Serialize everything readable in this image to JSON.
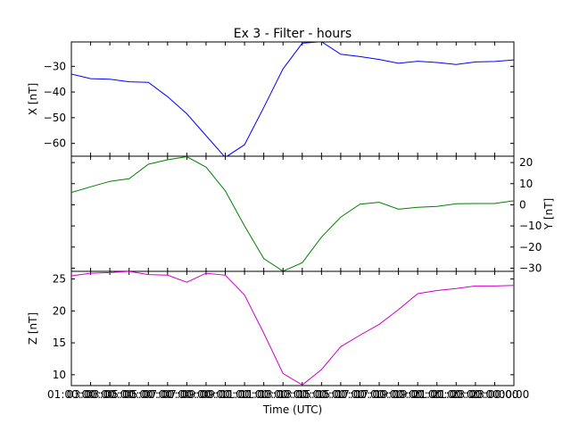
{
  "chart_data": {
    "type": "line",
    "title": "Ex 3 - Filter - hours",
    "xlabel": "Time (UTC)",
    "x": [
      "01:00:00",
      "02:00:00",
      "03:00:00",
      "04:00:00",
      "05:00:00",
      "06:00:00",
      "07:00:00",
      "08:00:00",
      "09:00:00",
      "10:00:00",
      "11:00:00",
      "12:00:00",
      "13:00:00",
      "14:00:00",
      "15:00:00",
      "16:00:00",
      "17:00:00",
      "18:00:00",
      "19:00:00",
      "20:00:00",
      "21:00:00",
      "22:00:00",
      "23:00:00",
      "00:00:00"
    ],
    "x_tick_labels": [
      "01:00:00",
      "03:00:00",
      "05:00:00",
      "07:00:00",
      "09:00:00",
      "11:00:00",
      "13:00:00",
      "15:00:00",
      "17:00:00",
      "19:00:00",
      "21:00:00",
      "23:00:00"
    ],
    "x_tick_labels_secondary": [
      "03:00:00",
      "05:00:00",
      "07:00:00",
      "09:00:00",
      "11:00:00",
      "13:00:00",
      "15:00:00",
      "17:00:00",
      "19:00:00",
      "21:00:00",
      "23:00:00"
    ],
    "x_tick_labels_end": "00:00",
    "panels": [
      {
        "ylabel": "X [nT]",
        "ylabel_side": "left",
        "color": "#0000ff",
        "ylim": [
          -65,
          -20.5
        ],
        "yticks": [
          -60,
          -50,
          -40,
          -30
        ],
        "values": [
          -33,
          -34.8,
          -35,
          -36,
          -36.2,
          -41.8,
          -48.5,
          -57,
          -65.5,
          -60.5,
          -46,
          -31,
          -21,
          -20.4,
          -25.3,
          -26.2,
          -27.3,
          -28.8,
          -28,
          -28.5,
          -29.3,
          -28.3,
          -28.1,
          -27.5
        ]
      },
      {
        "ylabel": "Y [nT]",
        "ylabel_side": "right",
        "color": "#008000",
        "ylim": [
          -31.5,
          23
        ],
        "yticks": [
          -30,
          -20,
          -10,
          0,
          10,
          20
        ],
        "values": [
          5.8,
          8.5,
          11.1,
          12.3,
          19.2,
          21.3,
          22.8,
          17.8,
          6.6,
          -10,
          -25.5,
          -31.4,
          -27.4,
          -15.3,
          -5.8,
          0.3,
          1.2,
          -2.1,
          -1.2,
          -0.8,
          0.5,
          0.6,
          0.6,
          1.9
        ]
      },
      {
        "ylabel": "Z [nT]",
        "ylabel_side": "left",
        "color": "#cc00cc",
        "ylim": [
          8.3,
          26.2
        ],
        "yticks": [
          10,
          15,
          20,
          25
        ],
        "values": [
          25.5,
          25.9,
          26,
          26.2,
          25.7,
          25.6,
          24.5,
          25.9,
          25.6,
          22.5,
          16.5,
          10.2,
          8.4,
          10.8,
          14.4,
          16.2,
          17.9,
          20.2,
          22.7,
          23.2,
          23.5,
          23.9,
          23.9,
          24
        ]
      }
    ]
  }
}
